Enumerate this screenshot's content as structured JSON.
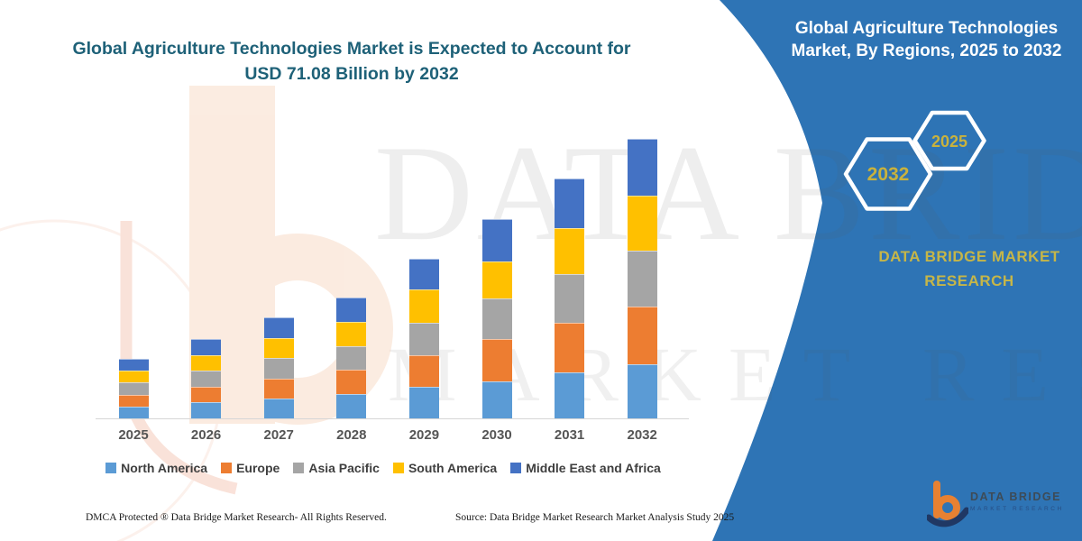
{
  "left": {
    "title_line1": "Global Agriculture Technologies Market is Expected to Account for",
    "title_line2": "USD 71.08 Billion by 2032"
  },
  "right_panel": {
    "panel_color": "#2E74B5",
    "title_line1": "Global Agriculture Technologies",
    "title_line2": "Market, By Regions, 2025 to 2032",
    "hexagons": [
      {
        "label": "2032"
      },
      {
        "label": "2025"
      }
    ],
    "brand_line1": "DATA BRIDGE MARKET",
    "brand_line2": "RESEARCH",
    "accent_gold": "#C9B23D"
  },
  "watermark": {
    "line1": "DATA BRIDGE",
    "line2": "MARKET RESEARCH"
  },
  "logo": {
    "name": "DATA BRIDGE",
    "sub": "MARKET RESEARCH"
  },
  "footer": {
    "dmca": "DMCA Protected ® Data Bridge Market Research-  All Rights Reserved.",
    "source": "Source: Data Bridge Market Research  Market Analysis Study 2025"
  },
  "chart_data": {
    "type": "bar",
    "stacked": true,
    "title": "Global Agriculture Technologies Market is Expected to Account for USD 71.08 Billion by 2032",
    "unit": "USD Billion",
    "categories": [
      "2025",
      "2026",
      "2027",
      "2028",
      "2029",
      "2030",
      "2031",
      "2032"
    ],
    "series": [
      {
        "name": "North America",
        "color": "#5B9BD5",
        "values": [
          3.0,
          4.1,
          5.0,
          6.2,
          8.0,
          9.5,
          11.8,
          13.7
        ]
      },
      {
        "name": "Europe",
        "color": "#ED7D31",
        "values": [
          3.0,
          4.0,
          5.1,
          6.1,
          8.0,
          10.7,
          12.6,
          14.7
        ]
      },
      {
        "name": "Asia Pacific",
        "color": "#A5A5A5",
        "values": [
          3.1,
          4.0,
          5.2,
          6.0,
          8.4,
          10.3,
          12.2,
          14.2
        ]
      },
      {
        "name": "South America",
        "color": "#FFC000",
        "values": [
          3.0,
          3.9,
          5.1,
          6.2,
          8.4,
          9.5,
          11.8,
          14.1
        ]
      },
      {
        "name": "Middle East and Africa",
        "color": "#4472C4",
        "values": [
          3.1,
          4.2,
          5.3,
          6.2,
          7.8,
          10.7,
          12.6,
          14.3
        ]
      }
    ],
    "totals": [
      15.2,
      20.2,
      25.7,
      30.7,
      40.6,
      50.7,
      61.0,
      71.08
    ],
    "xlabel": "",
    "ylabel": "",
    "ylim": [
      0,
      75
    ],
    "grid": false,
    "legend_position": "bottom"
  }
}
